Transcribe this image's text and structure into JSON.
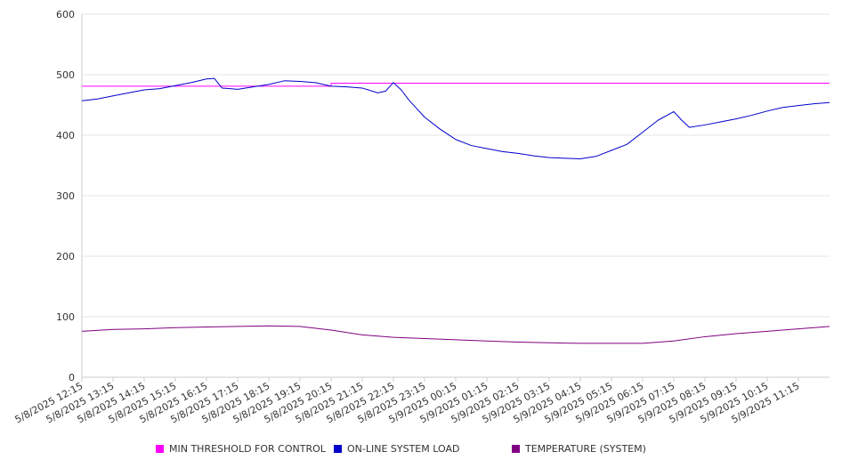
{
  "chart_data": {
    "type": "line",
    "title": "",
    "xlabel": "",
    "ylabel": "",
    "ylim": [
      0,
      600
    ],
    "yticks": [
      0,
      100,
      200,
      300,
      400,
      500,
      600
    ],
    "grid": true,
    "legend_position": "bottom",
    "x_tick_labels": [
      "5/8/2025 12:15",
      "5/8/2025 13:15",
      "5/8/2025 14:15",
      "5/8/2025 15:15",
      "5/8/2025 16:15",
      "5/8/2025 17:15",
      "5/8/2025 18:15",
      "5/8/2025 19:15",
      "5/8/2025 20:15",
      "5/8/2025 21:15",
      "5/8/2025 22:15",
      "5/8/2025 23:15",
      "5/9/2025 00:15",
      "5/9/2025 01:15",
      "5/9/2025 02:15",
      "5/9/2025 03:15",
      "5/9/2025 04:15",
      "5/9/2025 05:15",
      "5/9/2025 06:15",
      "5/9/2025 07:15",
      "5/9/2025 08:15",
      "5/9/2025 09:15",
      "5/9/2025 10:15",
      "5/9/2025 11:15"
    ],
    "x_start": "5/8/2025 12:15",
    "x_end": "5/9/2025 12:15",
    "series": [
      {
        "name": "MIN THRESHOLD FOR CONTROL",
        "color": "#ff00ff",
        "x": [
          "5/8/2025 12:15",
          "5/8/2025 20:15",
          "5/8/2025 20:15",
          "5/9/2025 12:15"
        ],
        "values": [
          481,
          481,
          486,
          486
        ]
      },
      {
        "name": "ON-LINE SYSTEM LOAD",
        "color": "#0000cc",
        "x": [
          "5/8/2025 12:15",
          "5/8/2025 12:45",
          "5/8/2025 13:15",
          "5/8/2025 13:45",
          "5/8/2025 14:15",
          "5/8/2025 14:45",
          "5/8/2025 15:15",
          "5/8/2025 15:45",
          "5/8/2025 16:15",
          "5/8/2025 16:30",
          "5/8/2025 16:45",
          "5/8/2025 17:15",
          "5/8/2025 17:45",
          "5/8/2025 18:15",
          "5/8/2025 18:45",
          "5/8/2025 19:15",
          "5/8/2025 19:45",
          "5/8/2025 20:15",
          "5/8/2025 20:45",
          "5/8/2025 21:15",
          "5/8/2025 21:45",
          "5/8/2025 22:00",
          "5/8/2025 22:15",
          "5/8/2025 22:30",
          "5/8/2025 22:45",
          "5/8/2025 23:15",
          "5/8/2025 23:45",
          "5/9/2025 00:15",
          "5/9/2025 00:45",
          "5/9/2025 01:15",
          "5/9/2025 01:45",
          "5/9/2025 02:15",
          "5/9/2025 02:45",
          "5/9/2025 03:15",
          "5/9/2025 03:45",
          "5/9/2025 04:15",
          "5/9/2025 04:45",
          "5/9/2025 05:15",
          "5/9/2025 05:45",
          "5/9/2025 06:15",
          "5/9/2025 06:45",
          "5/9/2025 07:15",
          "5/9/2025 07:30",
          "5/9/2025 07:45",
          "5/9/2025 08:15",
          "5/9/2025 08:45",
          "5/9/2025 09:15",
          "5/9/2025 09:45",
          "5/9/2025 10:15",
          "5/9/2025 10:45",
          "5/9/2025 11:15",
          "5/9/2025 11:45",
          "5/9/2025 12:15"
        ],
        "values": [
          457,
          460,
          465,
          470,
          475,
          477,
          482,
          487,
          493,
          494,
          478,
          476,
          480,
          484,
          490,
          489,
          487,
          481,
          480,
          478,
          470,
          473,
          487,
          475,
          458,
          430,
          410,
          393,
          383,
          378,
          373,
          370,
          366,
          363,
          362,
          361,
          365,
          375,
          385,
          405,
          425,
          439,
          425,
          413,
          417,
          422,
          427,
          433,
          440,
          446,
          449,
          452,
          454
        ]
      },
      {
        "name": "TEMPERATURE (SYSTEM)",
        "color": "#800080",
        "x": [
          "5/8/2025 12:15",
          "5/8/2025 13:15",
          "5/8/2025 14:15",
          "5/8/2025 15:15",
          "5/8/2025 16:15",
          "5/8/2025 17:15",
          "5/8/2025 18:15",
          "5/8/2025 19:15",
          "5/8/2025 20:15",
          "5/8/2025 21:15",
          "5/8/2025 22:15",
          "5/8/2025 23:15",
          "5/9/2025 00:15",
          "5/9/2025 01:15",
          "5/9/2025 02:15",
          "5/9/2025 03:15",
          "5/9/2025 04:15",
          "5/9/2025 05:15",
          "5/9/2025 06:15",
          "5/9/2025 07:15",
          "5/9/2025 08:15",
          "5/9/2025 09:15",
          "5/9/2025 10:15",
          "5/9/2025 11:15",
          "5/9/2025 12:15"
        ],
        "values": [
          76,
          79,
          80,
          82,
          83,
          84,
          85,
          84,
          78,
          70,
          66,
          64,
          62,
          60,
          58,
          57,
          56,
          56,
          56,
          60,
          67,
          72,
          76,
          80,
          84
        ]
      }
    ]
  }
}
